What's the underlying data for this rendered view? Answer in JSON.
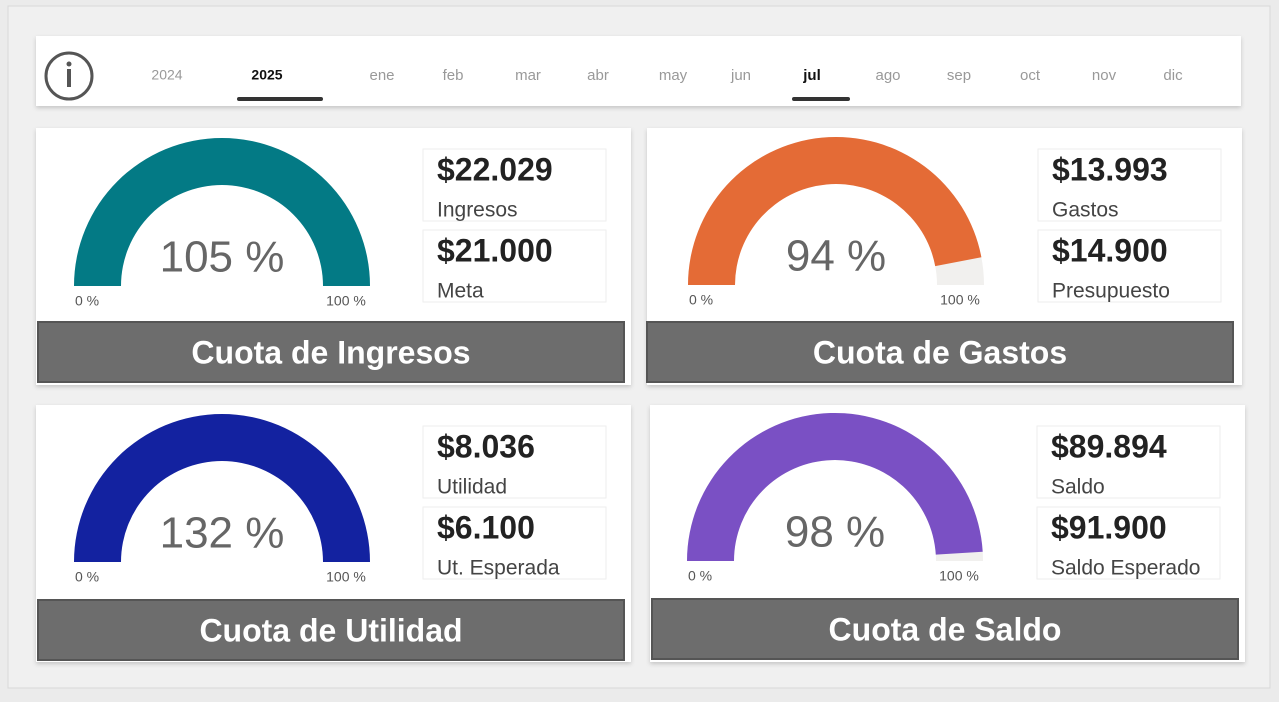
{
  "header": {
    "years": [
      {
        "label": "2024",
        "selected": false
      },
      {
        "label": "2025",
        "selected": true
      }
    ],
    "months": [
      {
        "label": "ene",
        "selected": false
      },
      {
        "label": "feb",
        "selected": false
      },
      {
        "label": "mar",
        "selected": false
      },
      {
        "label": "abr",
        "selected": false
      },
      {
        "label": "may",
        "selected": false
      },
      {
        "label": "jun",
        "selected": false
      },
      {
        "label": "jul",
        "selected": true
      },
      {
        "label": "ago",
        "selected": false
      },
      {
        "label": "sep",
        "selected": false
      },
      {
        "label": "oct",
        "selected": false
      },
      {
        "label": "nov",
        "selected": false
      },
      {
        "label": "dic",
        "selected": false
      }
    ]
  },
  "panels": [
    {
      "title": "Cuota de Ingresos",
      "color": "#037a85",
      "gauge": {
        "value": {
          "value": 105,
          "label": "105 %"
        },
        "min": {
          "value": 0,
          "label": "0 %"
        },
        "max": {
          "value": 100,
          "label": "100 %"
        }
      },
      "kpis": [
        {
          "value": "$22.029",
          "label": "Ingresos"
        },
        {
          "value": "$21.000",
          "label": "Meta"
        }
      ]
    },
    {
      "title": "Cuota de Gastos",
      "color": "#e46b36",
      "gauge": {
        "value": {
          "value": 94,
          "label": "94 %"
        },
        "min": {
          "value": 0,
          "label": "0 %"
        },
        "max": {
          "value": 100,
          "label": "100 %"
        }
      },
      "kpis": [
        {
          "value": "$13.993",
          "label": "Gastos"
        },
        {
          "value": "$14.900",
          "label": "Presupuesto"
        }
      ]
    },
    {
      "title": "Cuota de Utilidad",
      "color": "#1322a0",
      "gauge": {
        "value": {
          "value": 132,
          "label": "132 %"
        },
        "min": {
          "value": 0,
          "label": "0 %"
        },
        "max": {
          "value": 100,
          "label": "100 %"
        }
      },
      "kpis": [
        {
          "value": "$8.036",
          "label": "Utilidad"
        },
        {
          "value": "$6.100",
          "label": "Ut. Esperada"
        }
      ]
    },
    {
      "title": "Cuota de Saldo",
      "color": "#7a50c4",
      "gauge": {
        "value": {
          "value": 98,
          "label": "98 %"
        },
        "min": {
          "value": 0,
          "label": "0 %"
        },
        "max": {
          "value": 100,
          "label": "100 %"
        }
      },
      "kpis": [
        {
          "value": "$89.894",
          "label": "Saldo"
        },
        {
          "value": "$91.900",
          "label": "Saldo Esperado"
        }
      ]
    }
  ]
}
